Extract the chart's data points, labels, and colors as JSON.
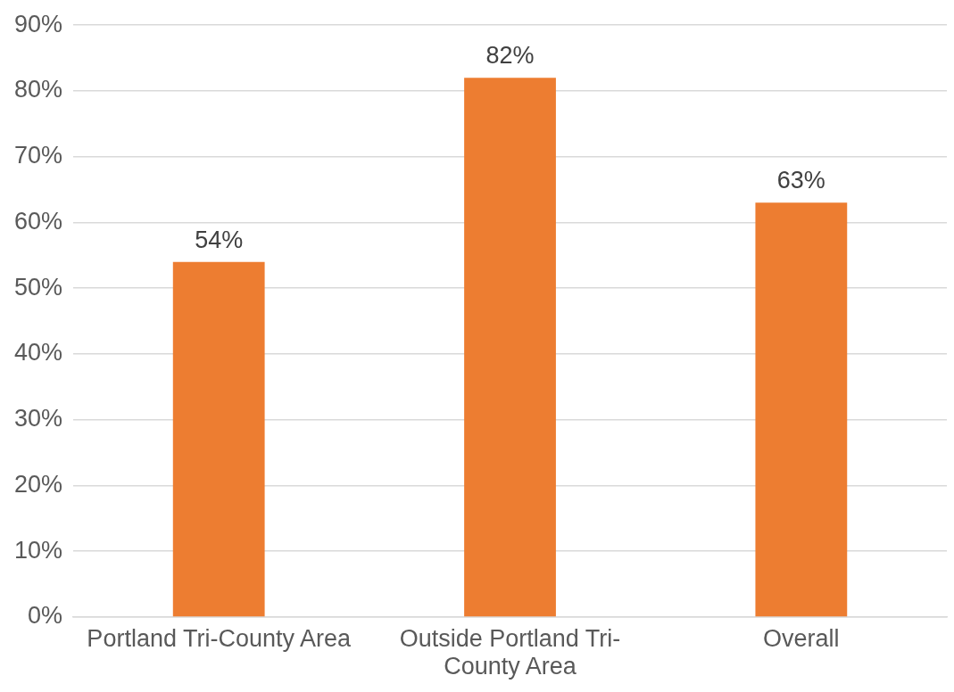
{
  "chart_data": {
    "type": "bar",
    "categories": [
      "Portland Tri-County Area",
      "Outside Portland Tri-County Area",
      "Overall"
    ],
    "values": [
      54,
      82,
      63
    ],
    "color": "#ed7d31",
    "value_labels": [
      "54%",
      "82%",
      "63%"
    ],
    "ylim": [
      0,
      90
    ],
    "yticks": [
      {
        "value": 0,
        "label": "0%"
      },
      {
        "value": 10,
        "label": "10%"
      },
      {
        "value": 20,
        "label": "20%"
      },
      {
        "value": 30,
        "label": "30%"
      },
      {
        "value": 40,
        "label": "40%"
      },
      {
        "value": 50,
        "label": "50%"
      },
      {
        "value": 60,
        "label": "60%"
      },
      {
        "value": 70,
        "label": "70%"
      },
      {
        "value": 80,
        "label": "80%"
      },
      {
        "value": 90,
        "label": "90%"
      }
    ],
    "grid": "y",
    "legend": false
  }
}
